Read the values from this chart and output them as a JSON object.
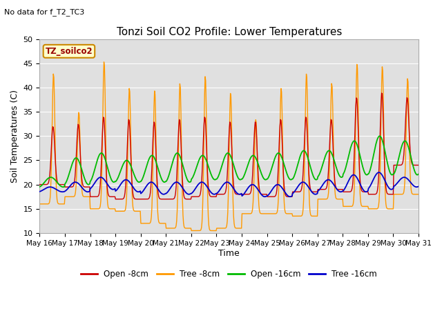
{
  "title": "Tonzi Soil CO2 Profile: Lower Temperatures",
  "subtitle": "No data for f_T2_TC3",
  "ylabel": "Soil Temperatures (C)",
  "xlabel": "Time",
  "legend_label": "TZ_soilco2",
  "ylim": [
    10,
    50
  ],
  "yticks": [
    10,
    15,
    20,
    25,
    30,
    35,
    40,
    45,
    50
  ],
  "bg_color": "#e0e0e0",
  "colors": {
    "open_8cm": "#cc0000",
    "tree_8cm": "#ff9900",
    "open_16cm": "#00bb00",
    "tree_16cm": "#0000cc"
  },
  "legend_entries": [
    "Open -8cm",
    "Tree -8cm",
    "Open -16cm",
    "Tree -16cm"
  ],
  "x_tick_labels": [
    "May 16",
    "May 17",
    "May 18",
    "May 19",
    "May 20",
    "May 21",
    "May 22",
    "May 23",
    "May 24",
    "May 25",
    "May 26",
    "May 27",
    "May 28",
    "May 29",
    "May 30",
    "May 31"
  ],
  "n_days": 15,
  "pts_per_day": 48
}
